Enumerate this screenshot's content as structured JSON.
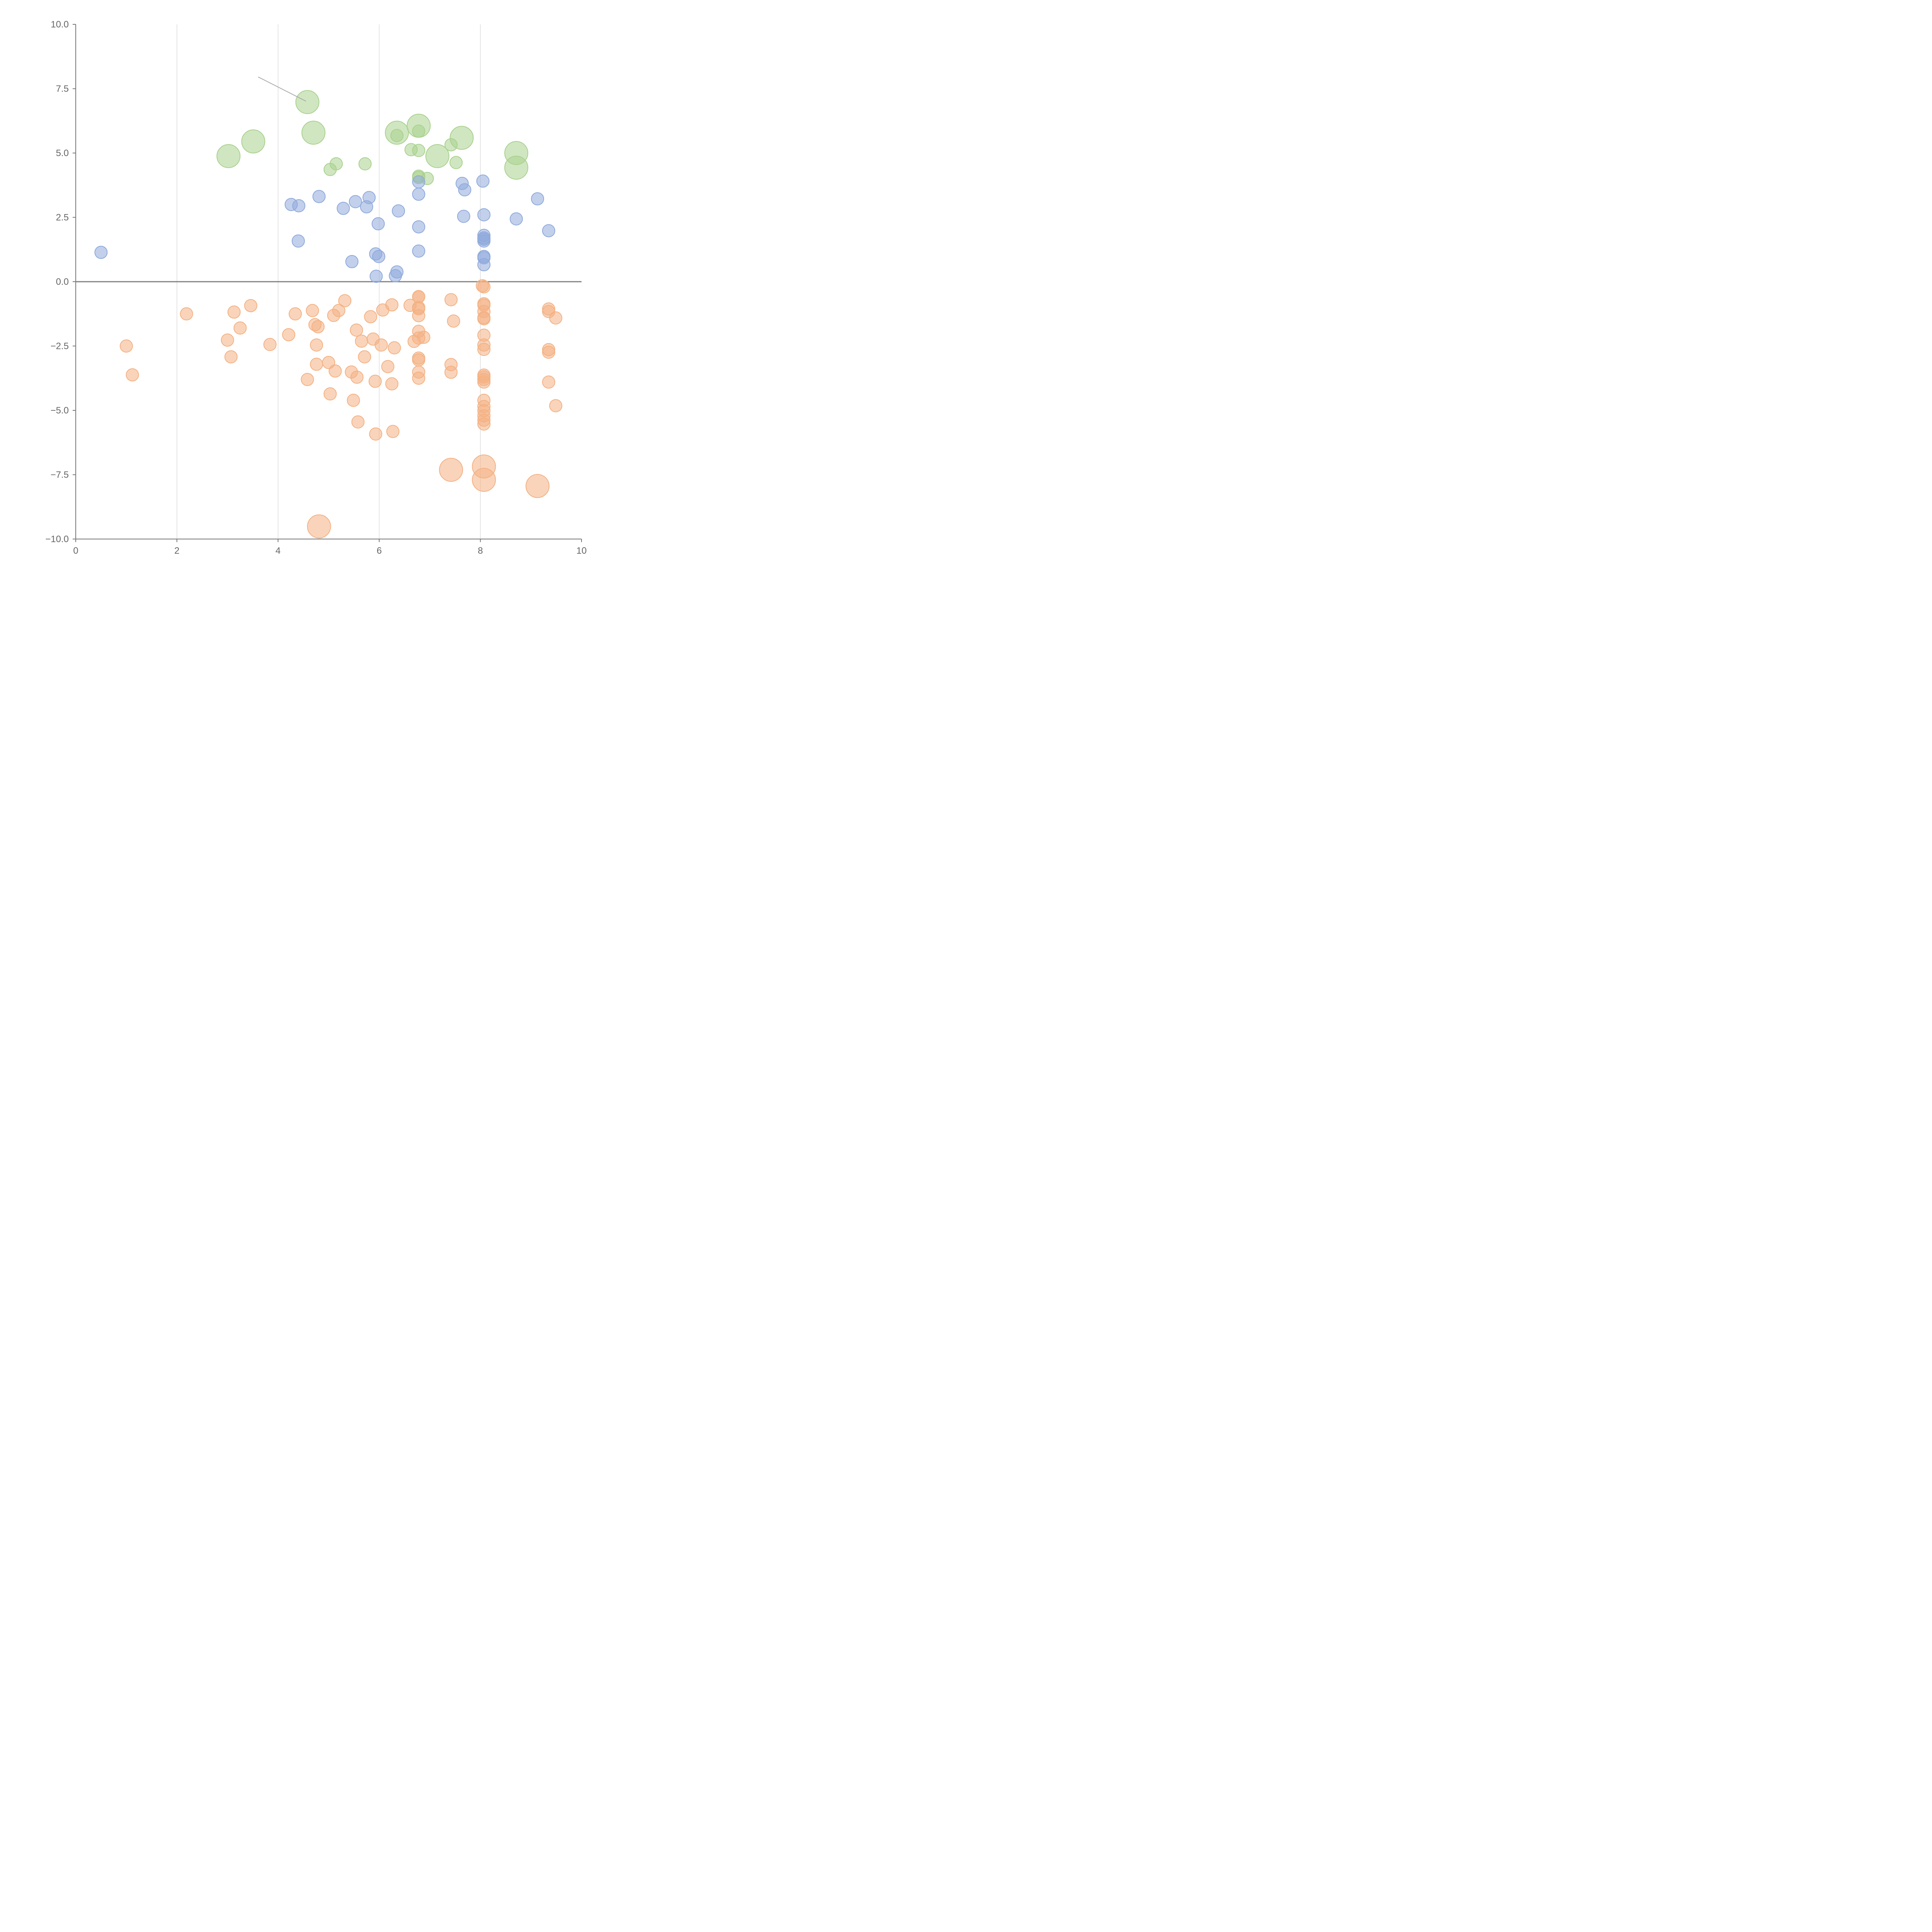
{
  "chart_data": {
    "type": "scatter",
    "title": "",
    "xlabel": "",
    "ylabel": "",
    "xlim": [
      0,
      10
    ],
    "ylim": [
      -10,
      10
    ],
    "x_ticks": [
      "0",
      "2",
      "4",
      "6",
      "8",
      "10"
    ],
    "y_ticks": [
      "−10.0",
      "−7.5",
      "−5.0",
      "−2.5",
      "0.0",
      "2.5",
      "5.0",
      "7.5",
      "10.0"
    ],
    "grid": "vertical",
    "zero_line": true,
    "series": [
      {
        "color": "#a9d18e",
        "points": [
          [
            4.58,
            6.98,
            "large"
          ],
          [
            4.7,
            5.79,
            "large"
          ],
          [
            3.51,
            5.45,
            "large"
          ],
          [
            3.02,
            4.88,
            "large"
          ],
          [
            6.35,
            5.79,
            "large"
          ],
          [
            6.78,
            6.06,
            "large"
          ],
          [
            7.15,
            4.88,
            "large"
          ],
          [
            7.63,
            5.59,
            "large"
          ],
          [
            8.71,
            5.0,
            "large"
          ],
          [
            8.71,
            4.43,
            "large"
          ],
          [
            6.35,
            5.68,
            "small"
          ],
          [
            6.78,
            5.85,
            "small"
          ],
          [
            6.63,
            5.13,
            "small"
          ],
          [
            6.78,
            5.1,
            "small"
          ],
          [
            7.42,
            5.32,
            "small"
          ],
          [
            7.52,
            4.63,
            "small"
          ],
          [
            5.72,
            4.58,
            "small"
          ],
          [
            5.15,
            4.58,
            "small"
          ],
          [
            5.03,
            4.36,
            "small"
          ],
          [
            6.78,
            4.1,
            "small"
          ],
          [
            6.78,
            4.05,
            "small"
          ],
          [
            6.95,
            4.01,
            "small"
          ]
        ]
      },
      {
        "color": "#8faadc",
        "points": [
          [
            0.5,
            1.14,
            "small"
          ],
          [
            4.26,
            3.0,
            "small"
          ],
          [
            4.41,
            2.95,
            "small"
          ],
          [
            4.81,
            3.31,
            "small"
          ],
          [
            4.4,
            1.58,
            "small"
          ],
          [
            5.29,
            2.85,
            "small"
          ],
          [
            5.53,
            3.11,
            "small"
          ],
          [
            5.8,
            3.27,
            "small"
          ],
          [
            5.75,
            2.91,
            "small"
          ],
          [
            5.98,
            2.25,
            "small"
          ],
          [
            5.93,
            1.08,
            "small"
          ],
          [
            5.99,
            0.98,
            "small"
          ],
          [
            5.46,
            0.78,
            "small"
          ],
          [
            6.38,
            2.75,
            "small"
          ],
          [
            6.35,
            0.38,
            "small"
          ],
          [
            6.32,
            0.23,
            "small"
          ],
          [
            5.94,
            0.21,
            "small"
          ],
          [
            6.78,
            3.88,
            "small"
          ],
          [
            6.78,
            3.4,
            "small"
          ],
          [
            6.78,
            2.13,
            "small"
          ],
          [
            6.78,
            1.19,
            "small"
          ],
          [
            7.64,
            3.82,
            "small"
          ],
          [
            7.69,
            3.57,
            "small"
          ],
          [
            7.67,
            2.54,
            "small"
          ],
          [
            8.05,
            3.91,
            "small"
          ],
          [
            8.07,
            2.6,
            "small"
          ],
          [
            8.07,
            1.8,
            "small"
          ],
          [
            8.07,
            1.7,
            "small"
          ],
          [
            8.07,
            1.65,
            "small"
          ],
          [
            8.07,
            1.58,
            "small"
          ],
          [
            8.07,
            0.98,
            "small"
          ],
          [
            8.07,
            0.93,
            "small"
          ],
          [
            8.07,
            0.66,
            "small"
          ],
          [
            8.71,
            2.44,
            "small"
          ],
          [
            9.13,
            3.22,
            "small"
          ],
          [
            9.35,
            1.98,
            "small"
          ]
        ]
      },
      {
        "color": "#f4b183",
        "points": [
          [
            4.81,
            -9.51,
            "large"
          ],
          [
            7.42,
            -7.31,
            "large"
          ],
          [
            8.07,
            -7.18,
            "large"
          ],
          [
            8.07,
            -7.7,
            "large"
          ],
          [
            9.13,
            -7.94,
            "large"
          ],
          [
            1.0,
            -2.5,
            "small"
          ],
          [
            1.12,
            -3.62,
            "small"
          ],
          [
            2.19,
            -1.25,
            "small"
          ],
          [
            3.0,
            -2.27,
            "small"
          ],
          [
            3.07,
            -2.92,
            "small"
          ],
          [
            3.13,
            -1.18,
            "small"
          ],
          [
            3.25,
            -1.8,
            "small"
          ],
          [
            3.46,
            -0.93,
            "small"
          ],
          [
            3.84,
            -2.44,
            "small"
          ],
          [
            4.21,
            -2.06,
            "small"
          ],
          [
            4.34,
            -1.25,
            "small"
          ],
          [
            4.58,
            -3.8,
            "small"
          ],
          [
            4.68,
            -1.12,
            "small"
          ],
          [
            4.73,
            -1.67,
            "small"
          ],
          [
            4.79,
            -1.75,
            "small"
          ],
          [
            4.76,
            -2.46,
            "small"
          ],
          [
            4.76,
            -3.21,
            "small"
          ],
          [
            5.0,
            -3.14,
            "small"
          ],
          [
            5.03,
            -4.36,
            "small"
          ],
          [
            5.1,
            -1.31,
            "small"
          ],
          [
            5.13,
            -3.47,
            "small"
          ],
          [
            5.2,
            -1.12,
            "small"
          ],
          [
            5.32,
            -0.74,
            "small"
          ],
          [
            5.45,
            -3.51,
            "small"
          ],
          [
            5.49,
            -4.61,
            "small"
          ],
          [
            5.55,
            -1.88,
            "small"
          ],
          [
            5.56,
            -3.71,
            "small"
          ],
          [
            5.58,
            -5.45,
            "small"
          ],
          [
            5.65,
            -2.31,
            "small"
          ],
          [
            5.71,
            -2.92,
            "small"
          ],
          [
            5.83,
            -1.36,
            "small"
          ],
          [
            5.88,
            -2.23,
            "small"
          ],
          [
            5.92,
            -3.87,
            "small"
          ],
          [
            5.93,
            -5.92,
            "small"
          ],
          [
            6.04,
            -2.46,
            "small"
          ],
          [
            6.07,
            -1.1,
            "small"
          ],
          [
            6.17,
            -3.3,
            "small"
          ],
          [
            6.25,
            -0.9,
            "small"
          ],
          [
            6.25,
            -3.97,
            "small"
          ],
          [
            6.27,
            -5.82,
            "small"
          ],
          [
            6.3,
            -2.57,
            "small"
          ],
          [
            6.61,
            -0.92,
            "small"
          ],
          [
            6.69,
            -2.32,
            "small"
          ],
          [
            6.78,
            -0.58,
            "small"
          ],
          [
            6.78,
            -0.59,
            "small"
          ],
          [
            6.78,
            -1.0,
            "small"
          ],
          [
            6.78,
            -1.05,
            "small"
          ],
          [
            6.78,
            -1.32,
            "small"
          ],
          [
            6.78,
            -1.93,
            "small"
          ],
          [
            6.78,
            -2.19,
            "small"
          ],
          [
            6.78,
            -2.97,
            "small"
          ],
          [
            6.78,
            -3.04,
            "small"
          ],
          [
            6.78,
            -3.51,
            "small"
          ],
          [
            6.78,
            -3.75,
            "small"
          ],
          [
            6.88,
            -2.16,
            "small"
          ],
          [
            7.42,
            -0.7,
            "small"
          ],
          [
            7.47,
            -1.53,
            "small"
          ],
          [
            7.42,
            -3.22,
            "small"
          ],
          [
            7.42,
            -3.52,
            "small"
          ],
          [
            8.04,
            -0.16,
            "small"
          ],
          [
            8.07,
            -0.2,
            "small"
          ],
          [
            8.07,
            -0.86,
            "small"
          ],
          [
            8.07,
            -0.91,
            "small"
          ],
          [
            8.07,
            -1.16,
            "small"
          ],
          [
            8.07,
            -1.4,
            "small"
          ],
          [
            8.07,
            -1.44,
            "small"
          ],
          [
            8.07,
            -2.08,
            "small"
          ],
          [
            8.07,
            -2.46,
            "small"
          ],
          [
            8.07,
            -2.63,
            "small"
          ],
          [
            8.07,
            -3.63,
            "small"
          ],
          [
            8.07,
            -3.7,
            "small"
          ],
          [
            8.07,
            -3.8,
            "small"
          ],
          [
            8.07,
            -3.9,
            "small"
          ],
          [
            8.07,
            -4.61,
            "small"
          ],
          [
            8.07,
            -4.85,
            "small"
          ],
          [
            8.07,
            -5.01,
            "small"
          ],
          [
            8.07,
            -5.21,
            "small"
          ],
          [
            8.07,
            -5.38,
            "small"
          ],
          [
            8.07,
            -5.53,
            "small"
          ],
          [
            9.35,
            -1.06,
            "small"
          ],
          [
            9.35,
            -1.16,
            "small"
          ],
          [
            9.35,
            -2.64,
            "small"
          ],
          [
            9.35,
            -2.74,
            "small"
          ],
          [
            9.35,
            -3.9,
            "small"
          ],
          [
            9.49,
            -1.41,
            "small"
          ],
          [
            9.49,
            -4.82,
            "small"
          ]
        ]
      }
    ]
  }
}
